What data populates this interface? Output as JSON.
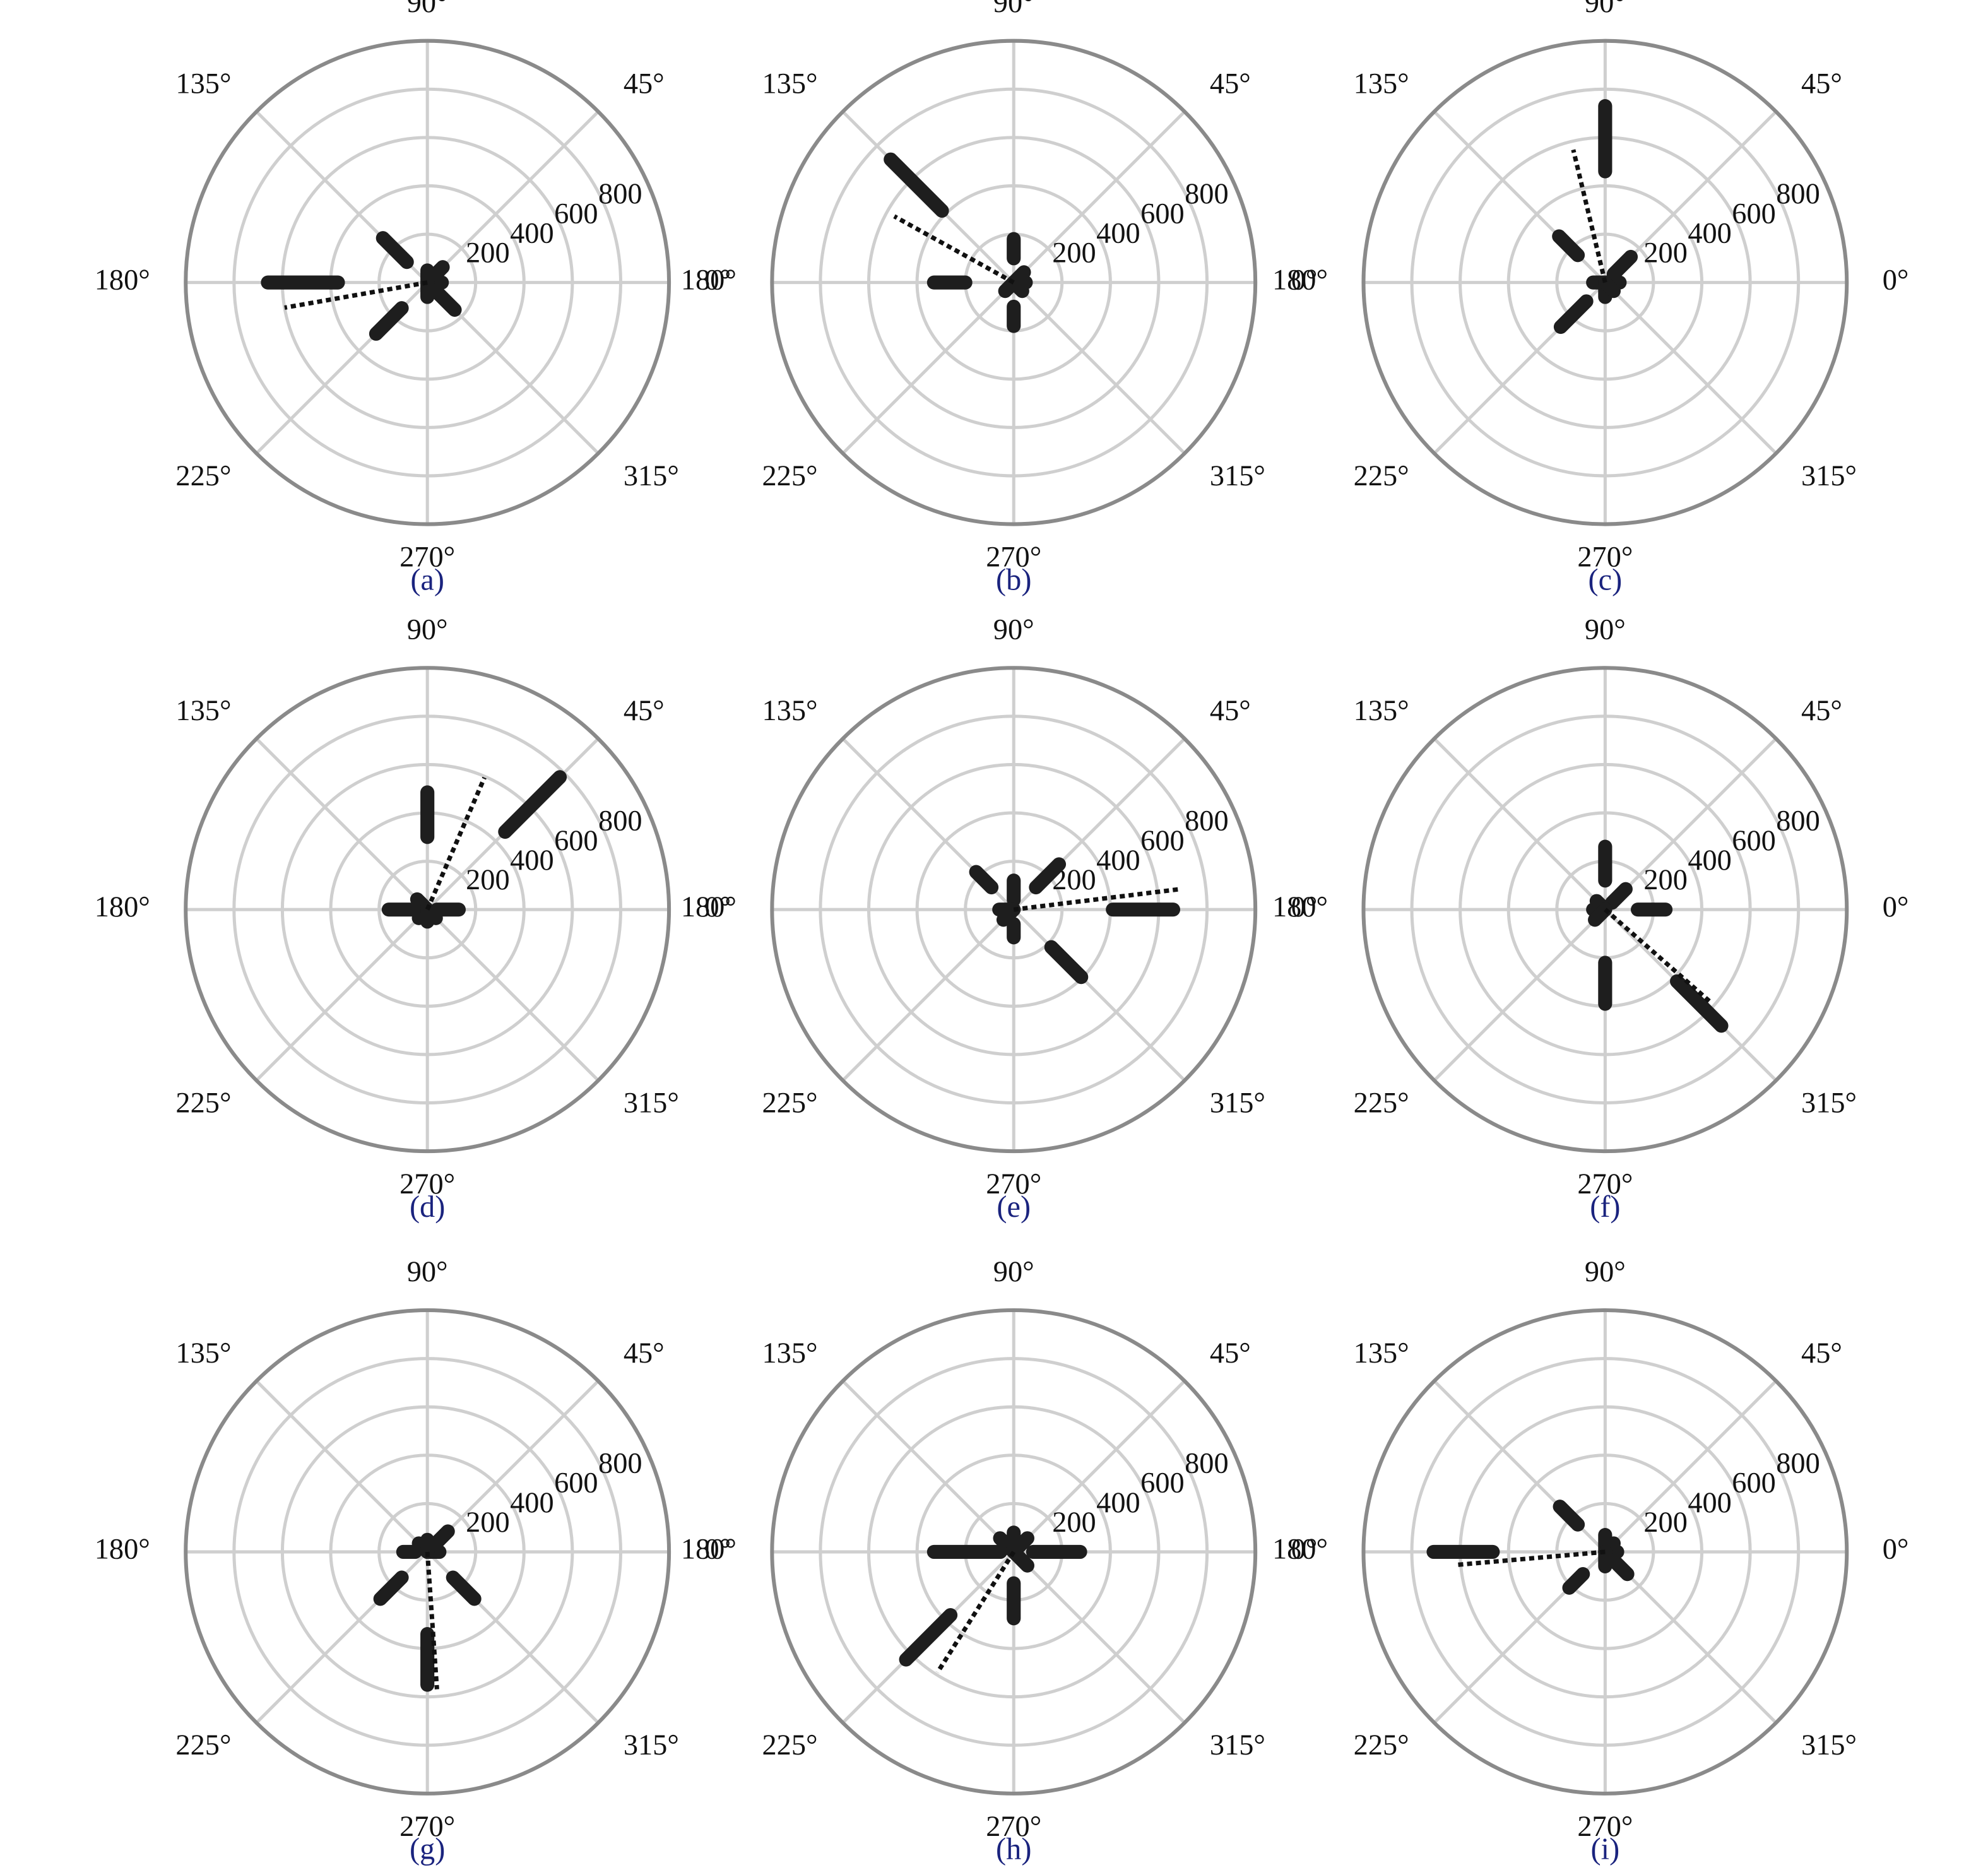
{
  "chart_data": [
    {
      "type": "polar",
      "title": "(a)",
      "rlim": [
        0,
        1000
      ],
      "rticks": [
        200,
        400,
        600,
        800
      ],
      "thetaticks": [
        {
          "value": 0,
          "label": "0°"
        },
        {
          "value": 45,
          "label": "45°"
        },
        {
          "value": 90,
          "label": "90°"
        },
        {
          "value": 135,
          "label": "135°"
        },
        {
          "value": 180,
          "label": "180°"
        },
        {
          "value": 225,
          "label": "225°"
        },
        {
          "value": 270,
          "label": "270°"
        },
        {
          "value": 315,
          "label": "315°"
        }
      ],
      "bars": {
        "color": "#1e1e1e",
        "theta": [
          0,
          45,
          90,
          135,
          180,
          225,
          270,
          315
        ],
        "r0": [
          0,
          0,
          0,
          120,
          370,
          150,
          0,
          50
        ],
        "r1": [
          60,
          90,
          50,
          260,
          660,
          300,
          60,
          160
        ]
      },
      "mean": {
        "color": "#111111",
        "theta": 190,
        "r": 600
      }
    },
    {
      "type": "polar",
      "title": "(b)",
      "rlim": [
        0,
        1000
      ],
      "rticks": [
        200,
        400,
        600,
        800
      ],
      "thetaticks": [
        {
          "value": 0,
          "label": "0°"
        },
        {
          "value": 45,
          "label": "45°"
        },
        {
          "value": 90,
          "label": "90°"
        },
        {
          "value": 135,
          "label": "135°"
        },
        {
          "value": 180,
          "label": "180°"
        },
        {
          "value": 225,
          "label": "225°"
        },
        {
          "value": 270,
          "label": "270°"
        },
        {
          "value": 315,
          "label": "315°"
        }
      ],
      "bars": {
        "color": "#1e1e1e",
        "theta": [
          0,
          45,
          90,
          135,
          180,
          225,
          270,
          315
        ],
        "r0": [
          0,
          0,
          100,
          420,
          200,
          0,
          100,
          0
        ],
        "r1": [
          50,
          60,
          180,
          720,
          330,
          50,
          180,
          50
        ]
      },
      "mean": {
        "color": "#111111",
        "theta": 151,
        "r": 565
      }
    },
    {
      "type": "polar",
      "title": "(c)",
      "rlim": [
        0,
        1000
      ],
      "rticks": [
        200,
        400,
        600,
        800
      ],
      "thetaticks": [
        {
          "value": 0,
          "label": "0°"
        },
        {
          "value": 45,
          "label": "45°"
        },
        {
          "value": 90,
          "label": "90°"
        },
        {
          "value": 135,
          "label": "135°"
        },
        {
          "value": 180,
          "label": "180°"
        },
        {
          "value": 225,
          "label": "225°"
        },
        {
          "value": 270,
          "label": "270°"
        },
        {
          "value": 315,
          "label": "315°"
        }
      ],
      "bars": {
        "color": "#1e1e1e",
        "theta": [
          0,
          45,
          90,
          135,
          180,
          225,
          270,
          315
        ],
        "r0": [
          0,
          50,
          460,
          160,
          0,
          110,
          0,
          0
        ],
        "r1": [
          60,
          150,
          730,
          270,
          50,
          260,
          60,
          50
        ]
      },
      "mean": {
        "color": "#111111",
        "theta": 103.5,
        "r": 565
      }
    },
    {
      "type": "polar",
      "title": "(d)",
      "rlim": [
        0,
        1000
      ],
      "rticks": [
        200,
        400,
        600,
        800
      ],
      "thetaticks": [
        {
          "value": 0,
          "label": "0°"
        },
        {
          "value": 45,
          "label": "45°"
        },
        {
          "value": 90,
          "label": "90°"
        },
        {
          "value": 135,
          "label": "135°"
        },
        {
          "value": 180,
          "label": "180°"
        },
        {
          "value": 225,
          "label": "225°"
        },
        {
          "value": 270,
          "label": "270°"
        },
        {
          "value": 315,
          "label": "315°"
        }
      ],
      "bars": {
        "color": "#1e1e1e",
        "theta": [
          0,
          45,
          90,
          135,
          180,
          225,
          270,
          315
        ],
        "r0": [
          40,
          455,
          300,
          0,
          50,
          0,
          0,
          0
        ],
        "r1": [
          130,
          775,
          485,
          60,
          160,
          50,
          50,
          50
        ]
      },
      "mean": {
        "color": "#111111",
        "theta": 66.6,
        "r": 595
      }
    },
    {
      "type": "polar",
      "title": "(e)",
      "rlim": [
        0,
        1000
      ],
      "rticks": [
        200,
        400,
        600,
        800
      ],
      "thetaticks": [
        {
          "value": 0,
          "label": "0°"
        },
        {
          "value": 45,
          "label": "45°"
        },
        {
          "value": 90,
          "label": "90°"
        },
        {
          "value": 135,
          "label": "135°"
        },
        {
          "value": 180,
          "label": "180°"
        },
        {
          "value": 225,
          "label": "225°"
        },
        {
          "value": 270,
          "label": "270°"
        },
        {
          "value": 315,
          "label": "315°"
        }
      ],
      "bars": {
        "color": "#1e1e1e",
        "theta": [
          0,
          45,
          90,
          135,
          180,
          225,
          270,
          315
        ],
        "r0": [
          410,
          130,
          40,
          130,
          0,
          0,
          60,
          220
        ],
        "r1": [
          660,
          265,
          120,
          220,
          60,
          60,
          115,
          395
        ]
      },
      "mean": {
        "color": "#111111",
        "theta": 7,
        "r": 700
      }
    },
    {
      "type": "polar",
      "title": "(f)",
      "rlim": [
        0,
        1000
      ],
      "rticks": [
        200,
        400,
        600,
        800
      ],
      "thetaticks": [
        {
          "value": 0,
          "label": "0°"
        },
        {
          "value": 45,
          "label": "45°"
        },
        {
          "value": 90,
          "label": "90°"
        },
        {
          "value": 135,
          "label": "135°"
        },
        {
          "value": 180,
          "label": "180°"
        },
        {
          "value": 225,
          "label": "225°"
        },
        {
          "value": 270,
          "label": "270°"
        },
        {
          "value": 315,
          "label": "315°"
        }
      ],
      "bars": {
        "color": "#1e1e1e",
        "theta": [
          0,
          45,
          90,
          135,
          180,
          225,
          270,
          315
        ],
        "r0": [
          135,
          40,
          120,
          0,
          0,
          0,
          220,
          420
        ],
        "r1": [
          250,
          120,
          260,
          50,
          50,
          60,
          390,
          680
        ]
      },
      "mean": {
        "color": "#111111",
        "theta": 318.7,
        "r": 580
      }
    },
    {
      "type": "polar",
      "title": "(g)",
      "rlim": [
        0,
        1000
      ],
      "rticks": [
        200,
        400,
        600,
        800
      ],
      "thetaticks": [
        {
          "value": 0,
          "label": "0°"
        },
        {
          "value": 45,
          "label": "45°"
        },
        {
          "value": 90,
          "label": "90°"
        },
        {
          "value": 135,
          "label": "135°"
        },
        {
          "value": 180,
          "label": "180°"
        },
        {
          "value": 225,
          "label": "225°"
        },
        {
          "value": 270,
          "label": "270°"
        },
        {
          "value": 315,
          "label": "315°"
        }
      ],
      "bars": {
        "color": "#1e1e1e",
        "theta": [
          0,
          45,
          90,
          135,
          180,
          225,
          270,
          315
        ],
        "r0": [
          0,
          40,
          0,
          0,
          50,
          150,
          340,
          150
        ],
        "r1": [
          50,
          120,
          50,
          50,
          100,
          275,
          550,
          275
        ]
      },
      "mean": {
        "color": "#111111",
        "theta": 274,
        "r": 570
      }
    },
    {
      "type": "polar",
      "title": "(h)",
      "rlim": [
        0,
        1000
      ],
      "rticks": [
        200,
        400,
        600,
        800
      ],
      "thetaticks": [
        {
          "value": 0,
          "label": "0°"
        },
        {
          "value": 45,
          "label": "45°"
        },
        {
          "value": 90,
          "label": "90°"
        },
        {
          "value": 135,
          "label": "135°"
        },
        {
          "value": 180,
          "label": "180°"
        },
        {
          "value": 225,
          "label": "225°"
        },
        {
          "value": 270,
          "label": "270°"
        },
        {
          "value": 315,
          "label": "315°"
        }
      ],
      "bars": {
        "color": "#1e1e1e",
        "theta": [
          0,
          45,
          90,
          135,
          180,
          225,
          270,
          315
        ],
        "r0": [
          80,
          0,
          0,
          0,
          55,
          370,
          130,
          0
        ],
        "r1": [
          275,
          80,
          80,
          80,
          330,
          630,
          275,
          80
        ]
      },
      "mean": {
        "color": "#111111",
        "theta": 237.7,
        "r": 590
      }
    },
    {
      "type": "polar",
      "title": "(i)",
      "rlim": [
        0,
        1000
      ],
      "rticks": [
        200,
        400,
        600,
        800
      ],
      "thetaticks": [
        {
          "value": 0,
          "label": "0°"
        },
        {
          "value": 45,
          "label": "45°"
        },
        {
          "value": 90,
          "label": "90°"
        },
        {
          "value": 135,
          "label": "135°"
        },
        {
          "value": 180,
          "label": "180°"
        },
        {
          "value": 225,
          "label": "225°"
        },
        {
          "value": 270,
          "label": "270°"
        },
        {
          "value": 315,
          "label": "315°"
        }
      ],
      "bars": {
        "color": "#1e1e1e",
        "theta": [
          0,
          45,
          90,
          135,
          180,
          225,
          270,
          315
        ],
        "r0": [
          0,
          0,
          0,
          160,
          465,
          130,
          0,
          50
        ],
        "r1": [
          50,
          50,
          70,
          265,
          710,
          210,
          60,
          130
        ]
      },
      "mean": {
        "color": "#111111",
        "theta": 185,
        "r": 620
      }
    }
  ]
}
